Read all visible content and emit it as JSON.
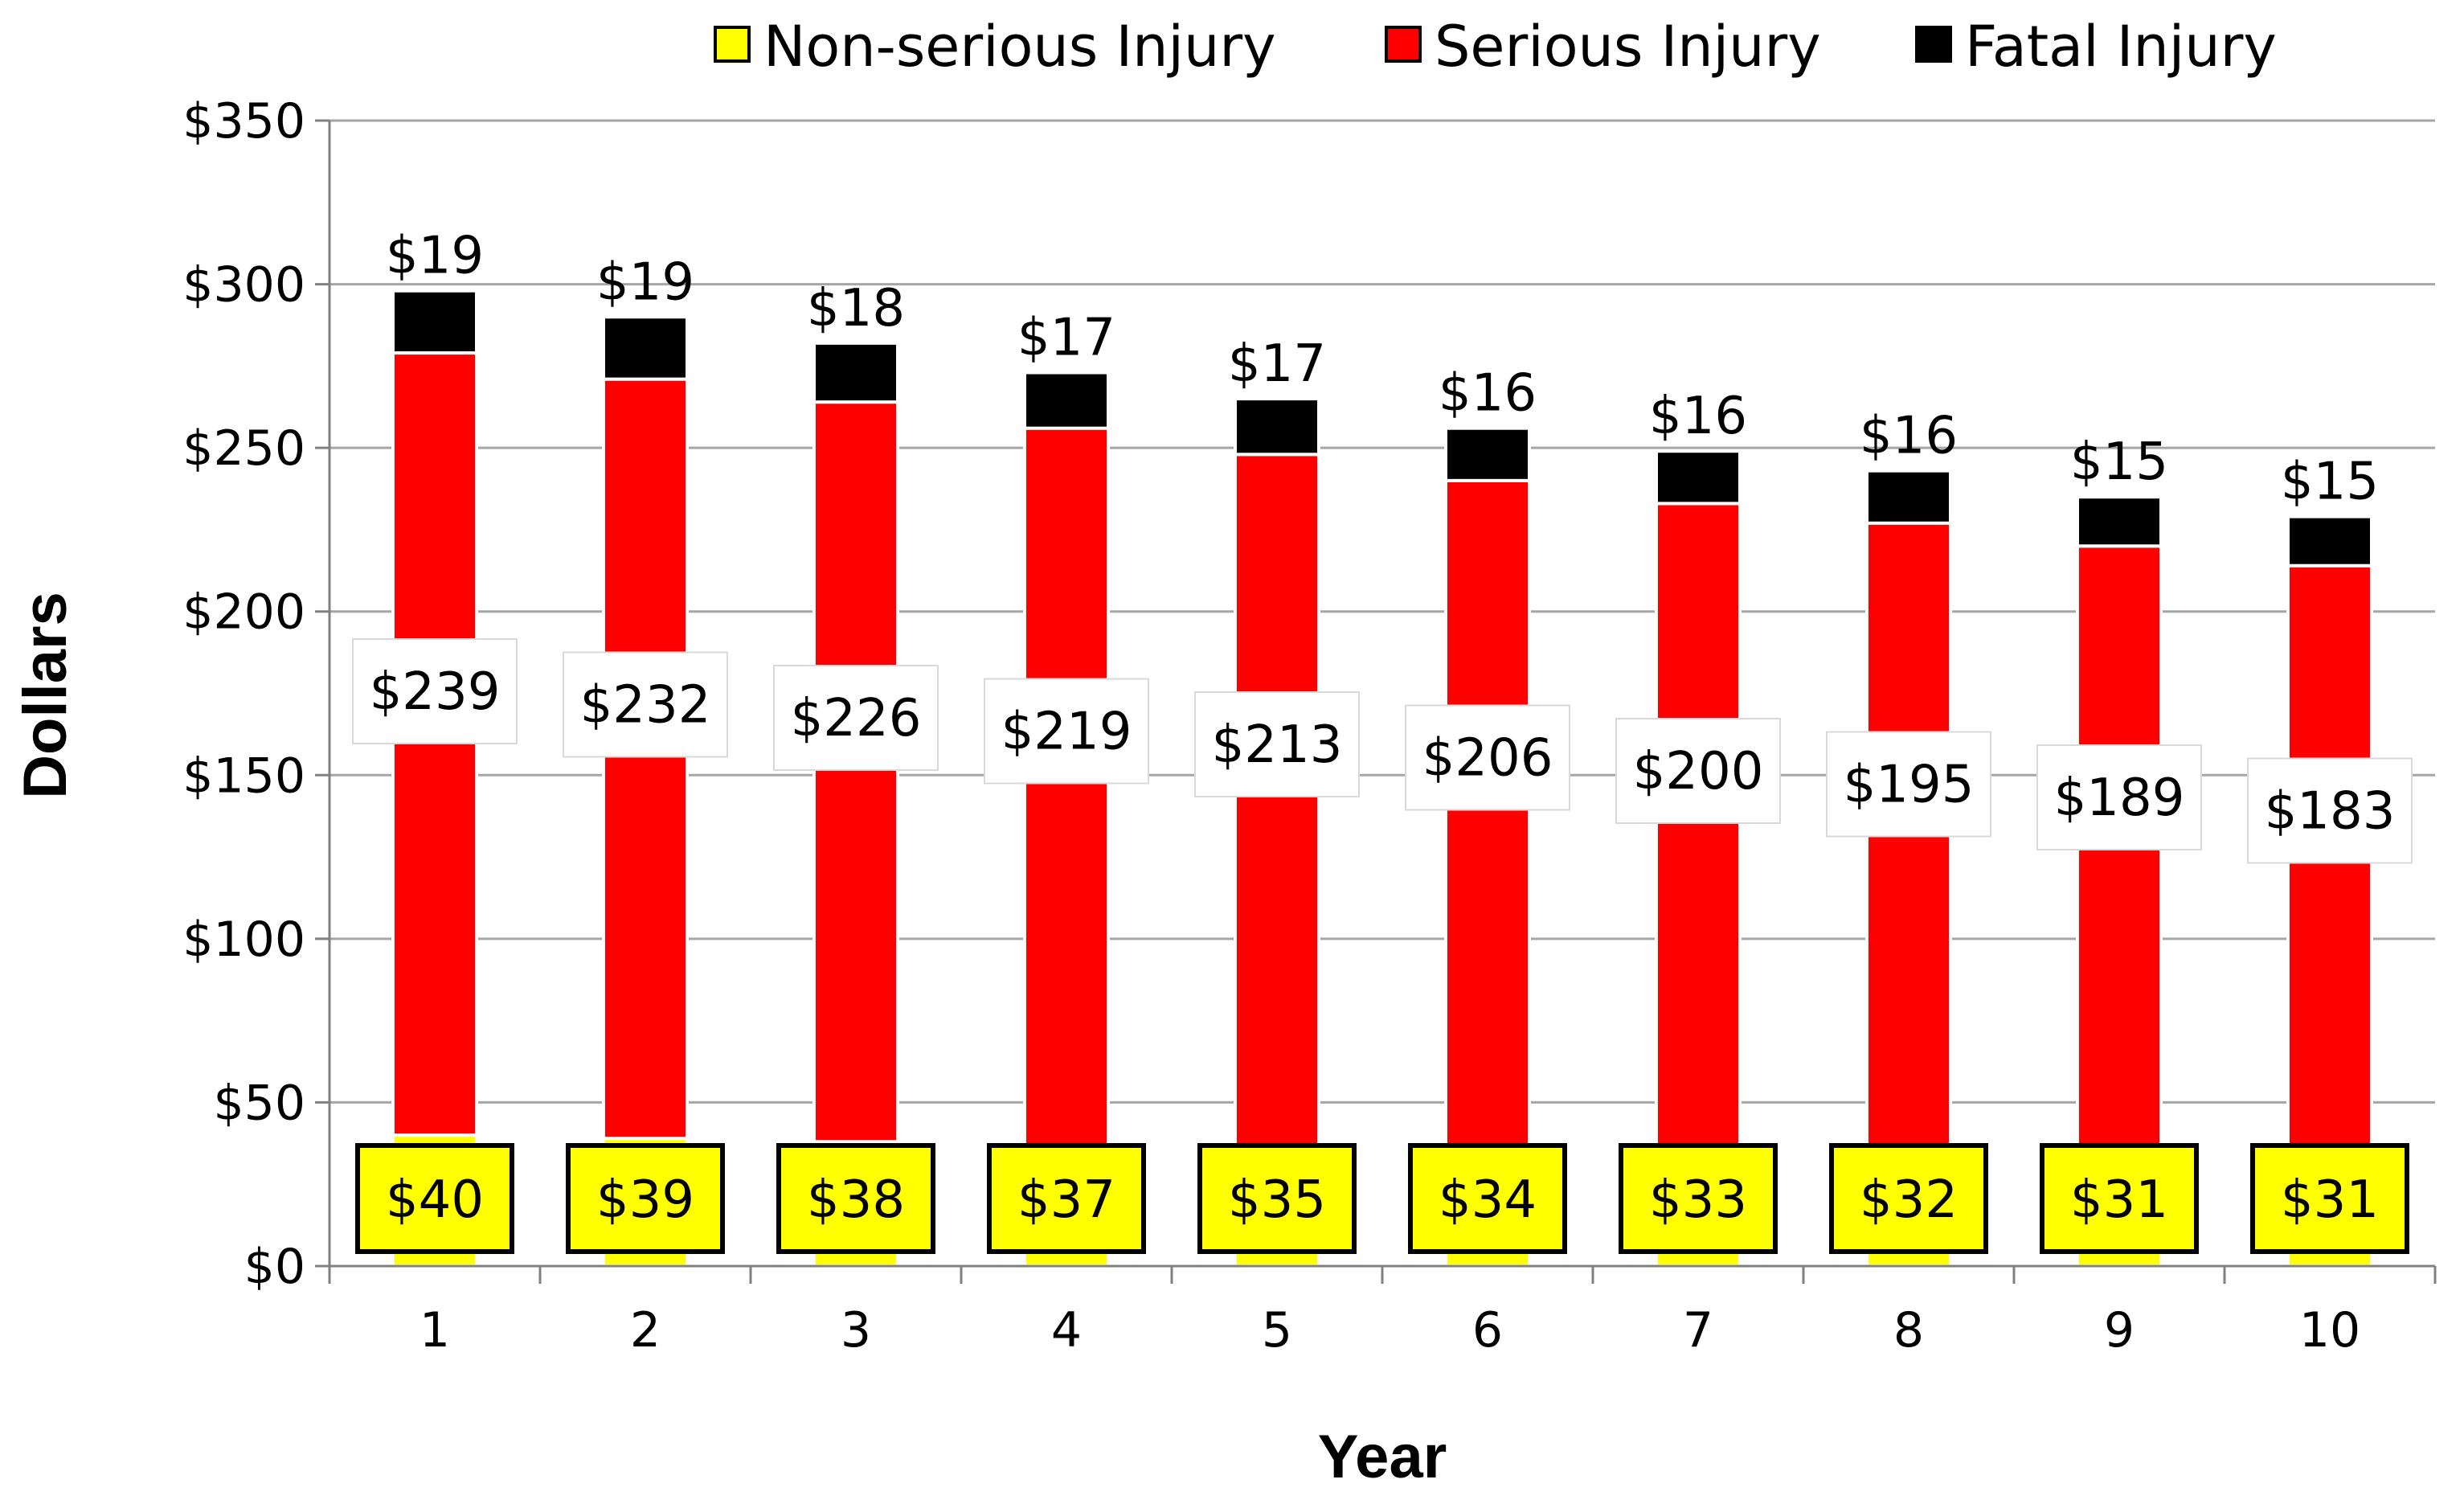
{
  "chart_data": {
    "type": "bar",
    "stacked": true,
    "categories": [
      "1",
      "2",
      "3",
      "4",
      "5",
      "6",
      "7",
      "8",
      "9",
      "10"
    ],
    "series": [
      {
        "name": "Non-serious Injury",
        "color": "#ffff00",
        "values": [
          40,
          39,
          38,
          37,
          35,
          34,
          33,
          32,
          31,
          31
        ]
      },
      {
        "name": "Serious Injury",
        "color": "#ff0000",
        "values": [
          239,
          232,
          226,
          219,
          213,
          206,
          200,
          195,
          189,
          183
        ]
      },
      {
        "name": "Fatal Injury",
        "color": "#000000",
        "values": [
          19,
          19,
          18,
          17,
          17,
          16,
          16,
          16,
          15,
          15
        ]
      }
    ],
    "value_prefix": "$",
    "xlabel": "Year",
    "ylabel": "Dollars",
    "ylim": [
      0,
      350
    ],
    "yticks": [
      0,
      50,
      100,
      150,
      200,
      250,
      300,
      350
    ],
    "ytick_labels": [
      "$0",
      "$50",
      "$100",
      "$150",
      "$200",
      "$250",
      "$300",
      "$350"
    ],
    "grid": true,
    "legend_position": "top"
  }
}
